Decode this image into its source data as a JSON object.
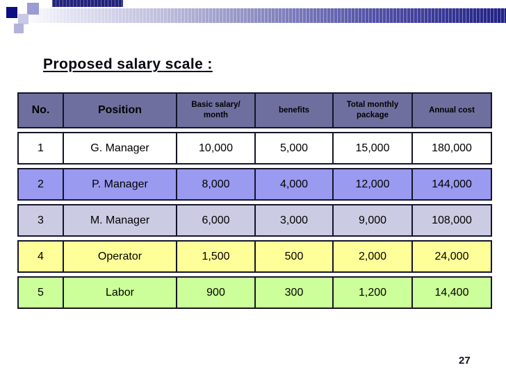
{
  "slide": {
    "title": "Proposed salary scale :",
    "page_number": "27"
  },
  "colors": {
    "header_bg": "#6f6f9f",
    "table_border": "#141428",
    "accent_navy": "#0d0d85",
    "banner_dark": "#202085"
  },
  "table": {
    "headers": [
      "No.",
      "Position",
      "Basic salary/ month",
      "benefits",
      "Total monthly package",
      "Annual cost"
    ],
    "rows": [
      {
        "bg": "#ffffff",
        "cells": [
          "1",
          "G. Manager",
          "10,000",
          "5,000",
          "15,000",
          "180,000"
        ]
      },
      {
        "bg": "#9a9af0",
        "cells": [
          "2",
          "P. Manager",
          "8,000",
          "4,000",
          "12,000",
          "144,000"
        ]
      },
      {
        "bg": "#cbcbe3",
        "cells": [
          "3",
          "M. Manager",
          "6,000",
          "3,000",
          "9,000",
          "108,000"
        ]
      },
      {
        "bg": "#ffff99",
        "cells": [
          "4",
          "Operator",
          "1,500",
          "500",
          "2,000",
          "24,000"
        ]
      },
      {
        "bg": "#ccff99",
        "cells": [
          "5",
          "Labor",
          "900",
          "300",
          "1,200",
          "14,400"
        ]
      }
    ]
  }
}
